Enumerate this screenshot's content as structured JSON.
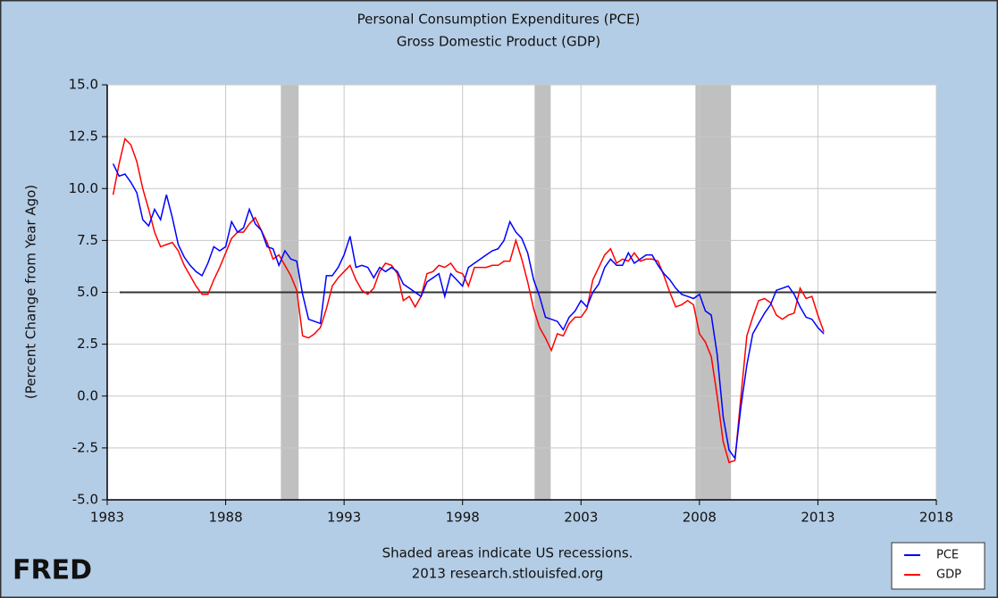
{
  "chart_data": {
    "type": "line",
    "title": "Personal Consumption Expenditures (PCE)",
    "subtitle": "Gross Domestic Product (GDP)",
    "y_label": "(Percent Change from Year Ago)",
    "footnote": "Shaded areas indicate US recessions.",
    "source": "2013 research.stlouisfed.org",
    "logo": "FRED",
    "x": [
      1983.25,
      1983.5,
      1983.75,
      1984,
      1984.25,
      1984.5,
      1984.75,
      1985,
      1985.25,
      1985.5,
      1985.75,
      1986,
      1986.25,
      1986.5,
      1986.75,
      1987,
      1987.25,
      1987.5,
      1987.75,
      1988,
      1988.25,
      1988.5,
      1988.75,
      1989,
      1989.25,
      1989.5,
      1989.75,
      1990,
      1990.25,
      1990.5,
      1990.75,
      1991,
      1991.25,
      1991.5,
      1991.75,
      1992,
      1992.25,
      1992.5,
      1992.75,
      1993,
      1993.25,
      1993.5,
      1993.75,
      1994,
      1994.25,
      1994.5,
      1994.75,
      1995,
      1995.25,
      1995.5,
      1995.75,
      1996,
      1996.25,
      1996.5,
      1996.75,
      1997,
      1997.25,
      1997.5,
      1997.75,
      1998,
      1998.25,
      1998.5,
      1998.75,
      1999,
      1999.25,
      1999.5,
      1999.75,
      2000,
      2000.25,
      2000.5,
      2000.75,
      2001,
      2001.25,
      2001.5,
      2001.75,
      2002,
      2002.25,
      2002.5,
      2002.75,
      2003,
      2003.25,
      2003.5,
      2003.75,
      2004,
      2004.25,
      2004.5,
      2004.75,
      2005,
      2005.25,
      2005.5,
      2005.75,
      2006,
      2006.25,
      2006.5,
      2006.75,
      2007,
      2007.25,
      2007.5,
      2007.75,
      2008,
      2008.25,
      2008.5,
      2008.75,
      2009,
      2009.25,
      2009.5,
      2009.75,
      2010,
      2010.25,
      2010.5,
      2010.75,
      2011,
      2011.25,
      2011.5,
      2011.75,
      2012,
      2012.25,
      2012.5,
      2012.75,
      2013,
      2013.25
    ],
    "series": [
      {
        "name": "PCE",
        "color": "#0000ff",
        "values": [
          11.2,
          10.6,
          10.7,
          10.3,
          9.8,
          8.5,
          8.2,
          9.0,
          8.5,
          9.7,
          8.6,
          7.3,
          6.7,
          6.3,
          6.0,
          5.8,
          6.4,
          7.2,
          7.0,
          7.2,
          8.4,
          7.9,
          8.1,
          9.0,
          8.3,
          8.0,
          7.2,
          7.1,
          6.3,
          7.0,
          6.6,
          6.5,
          4.9,
          3.7,
          3.6,
          3.5,
          5.8,
          5.8,
          6.2,
          6.8,
          7.7,
          6.2,
          6.3,
          6.2,
          5.7,
          6.2,
          6.0,
          6.2,
          6.0,
          5.4,
          5.2,
          5.0,
          4.8,
          5.5,
          5.7,
          5.9,
          4.8,
          5.9,
          5.6,
          5.3,
          6.2,
          6.4,
          6.6,
          6.8,
          7.0,
          7.1,
          7.5,
          8.4,
          7.9,
          7.6,
          6.9,
          5.6,
          4.8,
          3.8,
          3.7,
          3.6,
          3.2,
          3.8,
          4.1,
          4.6,
          4.3,
          5.0,
          5.4,
          6.2,
          6.6,
          6.3,
          6.3,
          6.9,
          6.4,
          6.6,
          6.8,
          6.8,
          6.3,
          5.9,
          5.6,
          5.2,
          4.9,
          4.8,
          4.7,
          4.9,
          4.1,
          3.9,
          2.0,
          -1.0,
          -2.6,
          -3.0,
          -0.5,
          1.5,
          3.0,
          3.5,
          4.0,
          4.4,
          5.1,
          5.2,
          5.3,
          4.9,
          4.3,
          3.8,
          3.7,
          3.3,
          3.0
        ]
      },
      {
        "name": "GDP",
        "color": "#ff0000",
        "values": [
          9.7,
          11.2,
          12.4,
          12.1,
          11.3,
          10.0,
          9.0,
          7.9,
          7.2,
          7.3,
          7.4,
          7.0,
          6.3,
          5.8,
          5.3,
          4.9,
          4.9,
          5.6,
          6.2,
          6.9,
          7.6,
          7.9,
          7.9,
          8.3,
          8.6,
          8.0,
          7.4,
          6.6,
          6.8,
          6.3,
          5.8,
          5.1,
          2.9,
          2.8,
          3.0,
          3.3,
          4.2,
          5.3,
          5.7,
          6.0,
          6.3,
          5.6,
          5.1,
          4.9,
          5.2,
          6.0,
          6.4,
          6.3,
          5.9,
          4.6,
          4.8,
          4.3,
          4.8,
          5.9,
          6.0,
          6.3,
          6.2,
          6.4,
          6.0,
          5.9,
          5.3,
          6.2,
          6.2,
          6.2,
          6.3,
          6.3,
          6.5,
          6.5,
          7.5,
          6.6,
          5.5,
          4.2,
          3.3,
          2.8,
          2.2,
          3.0,
          2.9,
          3.5,
          3.8,
          3.8,
          4.2,
          5.6,
          6.2,
          6.8,
          7.1,
          6.4,
          6.6,
          6.5,
          6.9,
          6.5,
          6.6,
          6.6,
          6.5,
          5.8,
          5.0,
          4.3,
          4.4,
          4.6,
          4.4,
          3.0,
          2.6,
          1.9,
          0.0,
          -2.2,
          -3.2,
          -3.1,
          0.0,
          2.9,
          3.8,
          4.6,
          4.7,
          4.5,
          3.9,
          3.7,
          3.9,
          4.0,
          5.2,
          4.7,
          4.8,
          3.9,
          3.1
        ]
      }
    ],
    "recessions": [
      [
        1990.33,
        1991.08
      ],
      [
        2001.04,
        2001.72
      ],
      [
        2007.83,
        2009.33
      ]
    ],
    "recession_color": "#c0c0c0",
    "hline": 5,
    "xlim": [
      1983,
      2018
    ],
    "xticks": [
      1983,
      1988,
      1993,
      1998,
      2003,
      2008,
      2013,
      2018
    ],
    "ylim": [
      -5,
      15
    ],
    "yticks": [
      {
        "value": -5,
        "label": "-5.0"
      },
      {
        "value": -2.5,
        "label": "-2.5"
      },
      {
        "value": 0,
        "label": "0.0"
      },
      {
        "value": 2.5,
        "label": "2.5"
      },
      {
        "value": 5,
        "label": "5.0"
      },
      {
        "value": 7.5,
        "label": "7.5"
      },
      {
        "value": 10,
        "label": "10.0"
      },
      {
        "value": 12.5,
        "label": "12.5"
      },
      {
        "value": 15,
        "label": "15.0"
      }
    ],
    "grid": true,
    "legend": "lower right"
  }
}
